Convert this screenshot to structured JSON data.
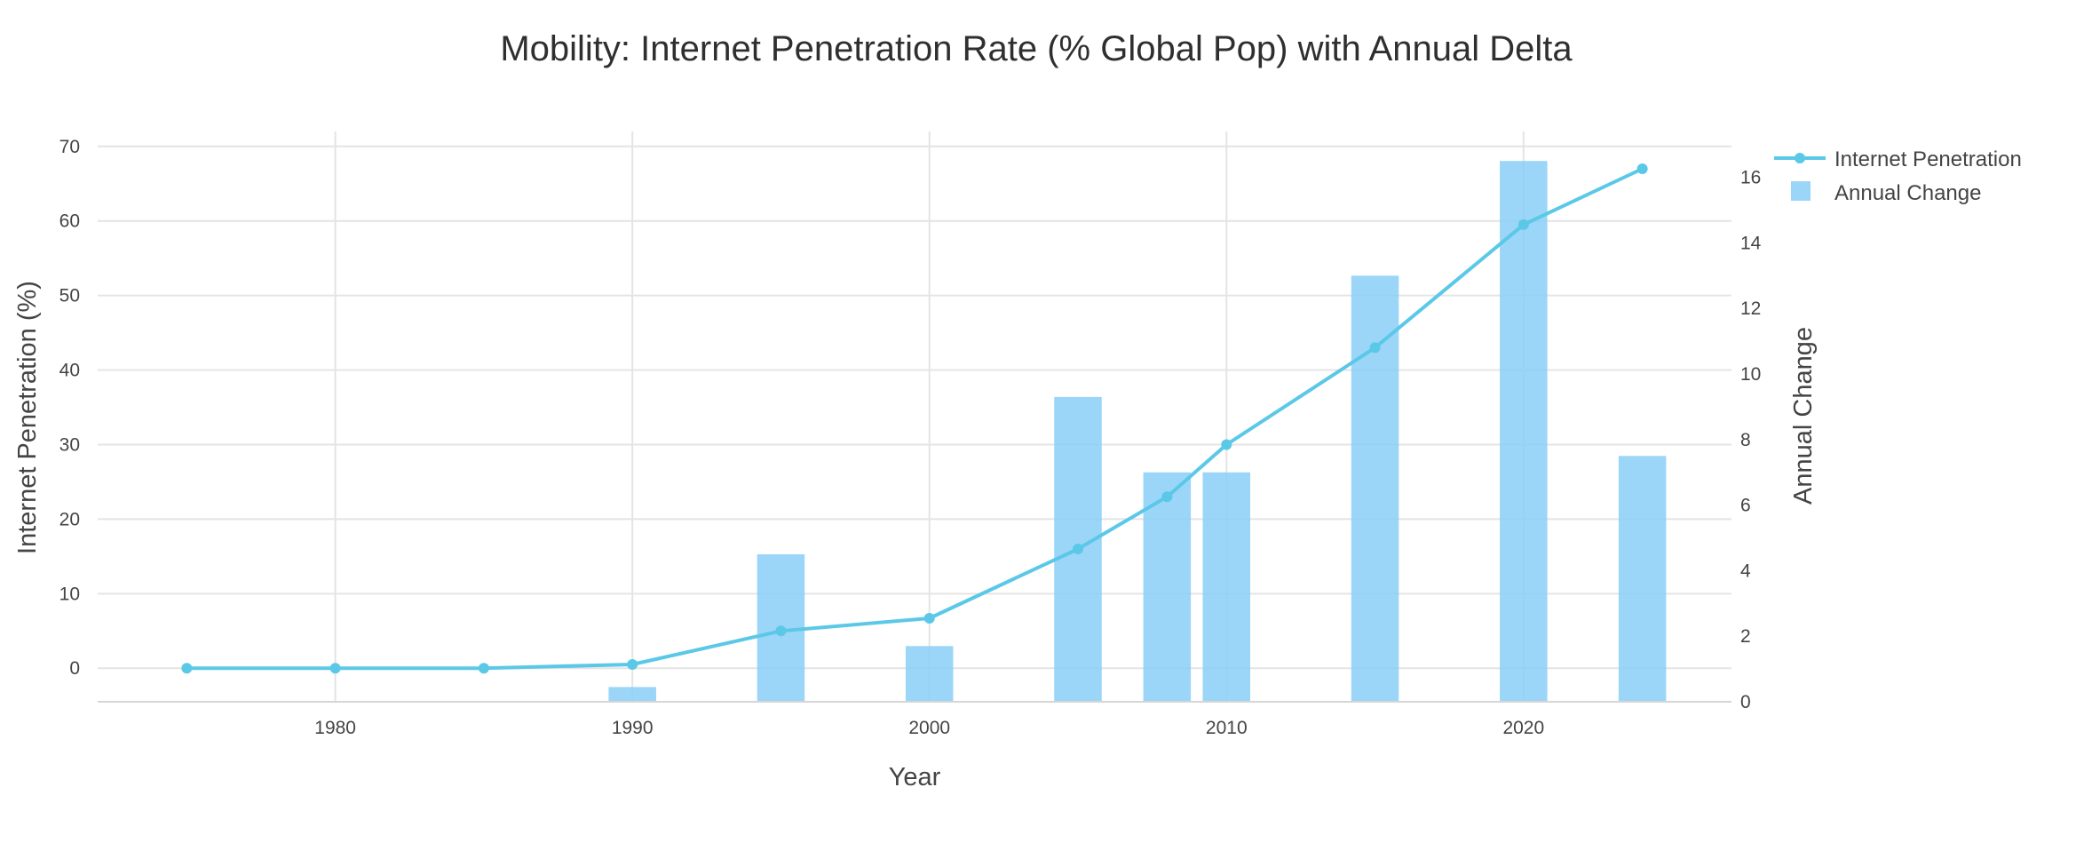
{
  "chart_data": {
    "type": "bar+line",
    "title": "Mobility: Internet Penetration Rate (% Global Pop) with Annual Delta",
    "xlabel": "Year",
    "ylabel_left": "Internet Penetration (%)",
    "ylabel_right": "Annual Change",
    "x_ticks": [
      1980,
      1990,
      2000,
      2010,
      2020
    ],
    "y_left_ticks": [
      0,
      10,
      20,
      30,
      40,
      50,
      60,
      70
    ],
    "y_right_ticks": [
      0,
      2,
      4,
      6,
      8,
      10,
      12,
      14,
      16
    ],
    "xlim": [
      1972,
      2027
    ],
    "y_left_lim": [
      -4.5,
      72
    ],
    "y_right_lim": [
      0,
      17.4
    ],
    "grid": true,
    "legend_position": "top-right",
    "colors": {
      "line": "#5bc8e8",
      "bar": "#89cff7",
      "grid": "#e4e4e4"
    },
    "series": [
      {
        "name": "Internet Penetration",
        "type": "line+markers",
        "axis": "left",
        "x": [
          1975,
          1980,
          1985,
          1990,
          1995,
          2000,
          2005,
          2008,
          2010,
          2015,
          2020,
          2024
        ],
        "values": [
          0,
          0,
          0,
          0.5,
          5,
          6.7,
          16,
          23,
          30,
          43,
          59.5,
          67
        ]
      },
      {
        "name": "Annual Change",
        "type": "bar",
        "axis": "right",
        "x": [
          1990,
          1995,
          2000,
          2005,
          2008,
          2010,
          2015,
          2020,
          2024
        ],
        "values": [
          0.45,
          4.5,
          1.7,
          9.3,
          7.0,
          7.0,
          13.0,
          16.5,
          7.5
        ]
      }
    ]
  }
}
